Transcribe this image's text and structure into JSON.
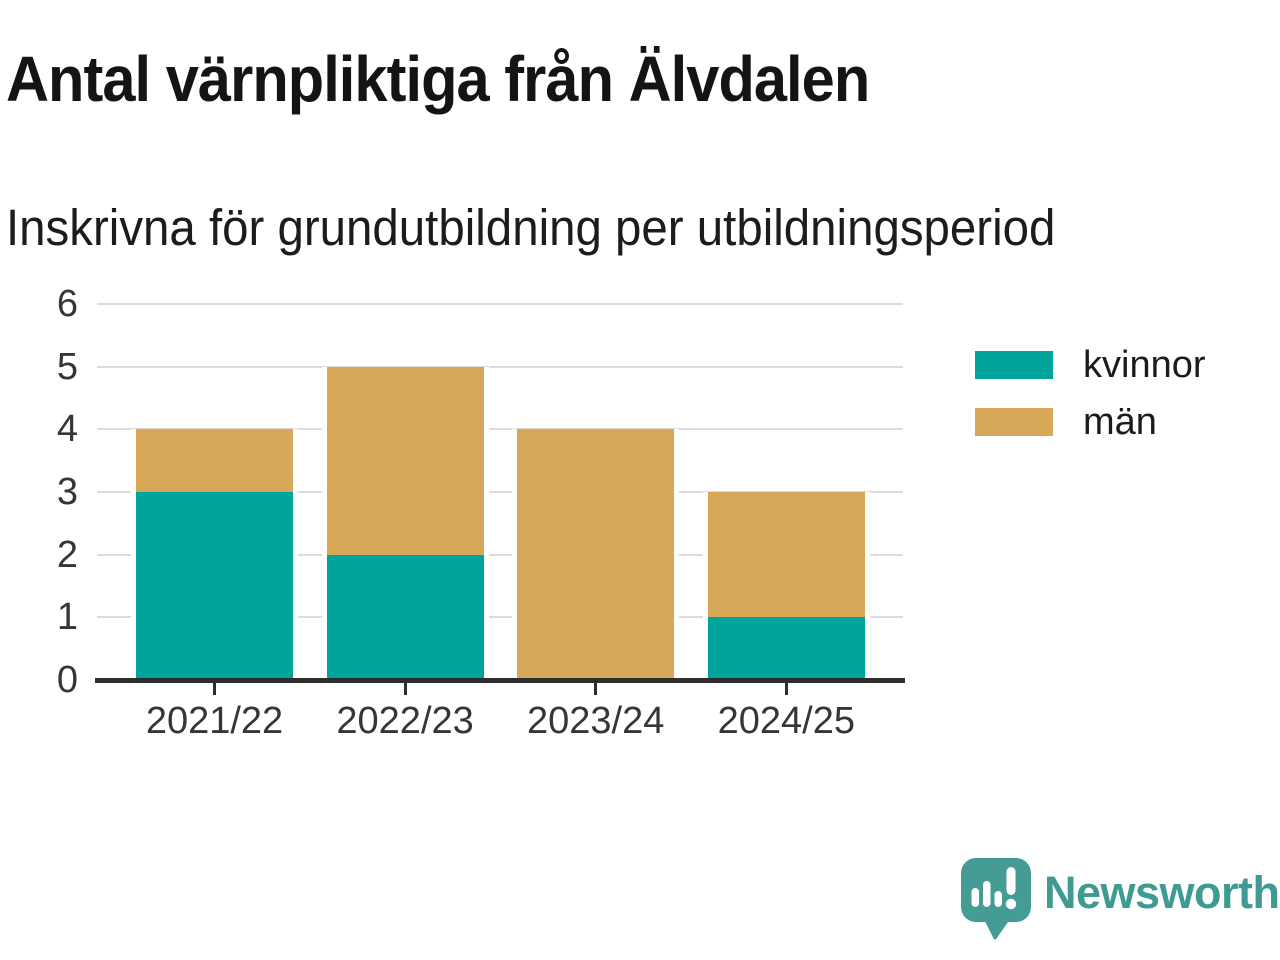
{
  "header": {
    "title": "Antal värnpliktiga från Älvdalen",
    "subtitle": "Inskrivna för grundutbildning per utbildningsperiod"
  },
  "chart_data": {
    "type": "bar",
    "stacked": true,
    "title": "Antal värnpliktiga från Älvdalen",
    "subtitle": "Inskrivna för grundutbildning per utbildningsperiod",
    "categories": [
      "2021/22",
      "2022/23",
      "2023/24",
      "2024/25"
    ],
    "series": [
      {
        "name": "kvinnor",
        "color": "#00A49B",
        "values": [
          3,
          2,
          0,
          1
        ]
      },
      {
        "name": "män",
        "color": "#D7A857",
        "values": [
          1,
          3,
          4,
          2
        ]
      }
    ],
    "totals": [
      4,
      5,
      4,
      3
    ],
    "xlabel": "",
    "ylabel": "",
    "ylim": [
      0,
      6
    ],
    "yticks": [
      0,
      1,
      2,
      3,
      4,
      5,
      6
    ],
    "grid": true,
    "legend_position": "right"
  },
  "legend": {
    "items": [
      {
        "label": "kvinnor",
        "color": "#00A49B"
      },
      {
        "label": "män",
        "color": "#D7A857"
      }
    ]
  },
  "branding": {
    "logo_text": "Newsworthy",
    "logo_icon": "speech-bubble-bar-chart-icon",
    "logo_color": "#459C95",
    "logo_text_color": "#3F9A93"
  },
  "colors": {
    "grid": "#DCDCDC",
    "axis": "#2D2D2D",
    "tick_text": "#363636",
    "title_text": "#141414"
  }
}
